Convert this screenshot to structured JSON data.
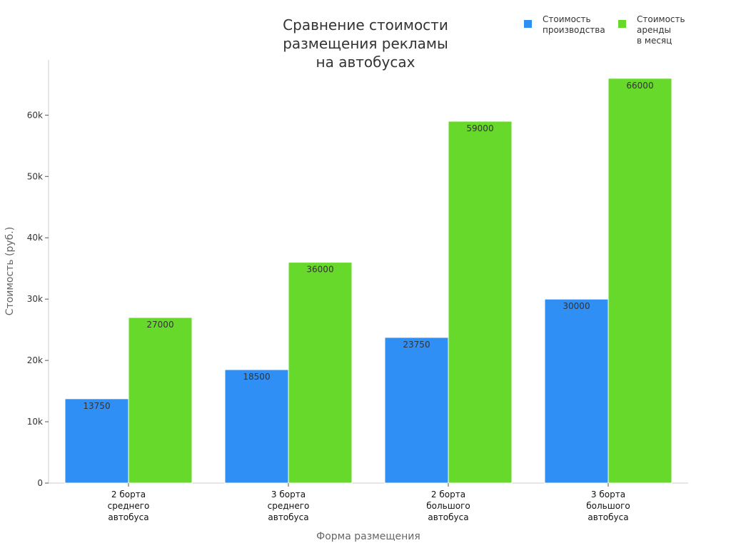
{
  "chart_data": {
    "type": "bar",
    "title": [
      "Сравнение стоимости",
      "размещения рекламы",
      "на автобусах"
    ],
    "xlabel": "Форма размещения",
    "ylabel": "Стоимость (руб.)",
    "categories": [
      [
        "2 борта",
        "среднего",
        "автобуса"
      ],
      [
        "3 борта",
        "среднего",
        "автобуса"
      ],
      [
        "2 борта",
        "большого",
        "автобуса"
      ],
      [
        "3 борта",
        "большого",
        "автобуса"
      ]
    ],
    "ylim": [
      0,
      69000
    ],
    "yticks": [
      0,
      10000,
      20000,
      30000,
      40000,
      50000,
      60000
    ],
    "ytick_labels": [
      "0",
      "10k",
      "20k",
      "30k",
      "40k",
      "50k",
      "60k"
    ],
    "legend_position": "top-right",
    "grid": false,
    "series": [
      {
        "name": [
          "Стоимость",
          "производства"
        ],
        "color": "#2f8ff5",
        "values": [
          13750,
          18500,
          23750,
          30000
        ],
        "labels": [
          "13750",
          "18500",
          "23750",
          "30000"
        ]
      },
      {
        "name": [
          "Стоимость",
          "аренды",
          "в месяц"
        ],
        "color": "#66d92a",
        "values": [
          27000,
          36000,
          59000,
          66000
        ],
        "labels": [
          "27000",
          "36000",
          "59000",
          "66000"
        ]
      }
    ]
  }
}
